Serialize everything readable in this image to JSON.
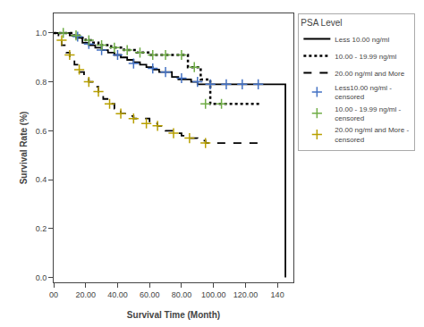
{
  "chart_data": {
    "type": "line",
    "title": "PSA Level",
    "xlabel": "Survival Time (Month)",
    "ylabel": "Survival Rate (%)",
    "xlim": [
      0,
      150
    ],
    "ylim": [
      -0.02,
      1.08
    ],
    "xticks": [
      {
        "value": 0,
        "label": "00"
      },
      {
        "value": 20,
        "label": "20.00"
      },
      {
        "value": 40,
        "label": "40.00"
      },
      {
        "value": 60,
        "label": "60.00"
      },
      {
        "value": 80,
        "label": "80.00"
      },
      {
        "value": 100,
        "label": "100.00"
      },
      {
        "value": 120,
        "label": "120.00"
      },
      140
    ],
    "yticks": [
      {
        "value": 0.0,
        "label": "0.0"
      },
      0.2,
      0.4,
      0.6,
      0.8,
      {
        "value": 1.0,
        "label": "1.0"
      }
    ],
    "grid": false,
    "legend": "right",
    "series": [
      {
        "name": "Less 10.00 ng/ml",
        "type": "line",
        "color": "#000000",
        "line_style": "solid",
        "x": [
          0,
          6,
          10,
          14,
          18,
          22,
          26,
          30,
          34,
          38,
          42,
          46,
          50,
          54,
          58,
          62,
          66,
          70,
          74,
          78,
          82,
          86,
          90,
          94,
          98,
          145
        ],
        "values": [
          1.0,
          1.0,
          0.99,
          0.98,
          0.96,
          0.95,
          0.94,
          0.93,
          0.92,
          0.91,
          0.9,
          0.89,
          0.88,
          0.87,
          0.86,
          0.85,
          0.84,
          0.84,
          0.82,
          0.81,
          0.81,
          0.8,
          0.79,
          0.79,
          0.79,
          0.0
        ]
      },
      {
        "name": "10.00 - 19.99 ng/ml",
        "type": "line",
        "color": "#000000",
        "line_style": "dotted",
        "x": [
          0,
          4,
          8,
          12,
          16,
          20,
          24,
          28,
          32,
          36,
          40,
          44,
          48,
          52,
          56,
          60,
          64,
          68,
          72,
          76,
          80,
          84,
          88,
          92,
          98,
          100,
          130
        ],
        "values": [
          1.0,
          1.0,
          1.0,
          0.99,
          0.98,
          0.97,
          0.96,
          0.95,
          0.95,
          0.94,
          0.94,
          0.93,
          0.93,
          0.92,
          0.92,
          0.91,
          0.91,
          0.91,
          0.91,
          0.91,
          0.91,
          0.86,
          0.86,
          0.81,
          0.71,
          0.71,
          0.71
        ]
      },
      {
        "name": "20.00 ng/ml and More",
        "type": "line",
        "color": "#000000",
        "line_style": "dashed",
        "x": [
          0,
          3,
          5,
          8,
          10,
          13,
          16,
          19,
          22,
          25,
          28,
          31,
          35,
          38,
          42,
          46,
          50,
          55,
          60,
          65,
          70,
          75,
          80,
          85,
          90,
          95,
          130
        ],
        "values": [
          1.0,
          0.97,
          0.95,
          0.92,
          0.9,
          0.87,
          0.84,
          0.82,
          0.8,
          0.78,
          0.75,
          0.73,
          0.71,
          0.69,
          0.67,
          0.66,
          0.65,
          0.65,
          0.63,
          0.62,
          0.6,
          0.59,
          0.58,
          0.57,
          0.56,
          0.55,
          0.55
        ]
      },
      {
        "name": "Less10.00 ng/ml -\ncensored",
        "type": "scatter",
        "color": "#4472c4",
        "marker": "plus",
        "x": [
          15,
          22,
          30,
          40,
          50,
          62,
          70,
          80,
          90,
          98,
          108,
          118,
          128
        ],
        "values": [
          0.985,
          0.955,
          0.93,
          0.91,
          0.875,
          0.855,
          0.84,
          0.815,
          0.8,
          0.79,
          0.79,
          0.79,
          0.79
        ]
      },
      {
        "name": "10.00 - 19.99 ng/ml -\ncensored",
        "type": "scatter",
        "color": "#70ad47",
        "marker": "plus",
        "x": [
          6,
          14,
          22,
          30,
          38,
          46,
          54,
          62,
          70,
          80,
          88,
          95,
          105
        ],
        "values": [
          1.0,
          0.99,
          0.97,
          0.95,
          0.94,
          0.93,
          0.92,
          0.91,
          0.91,
          0.91,
          0.86,
          0.71,
          0.71
        ]
      },
      {
        "name": "20.00 ng/ml and More -\ncensored",
        "type": "scatter",
        "color": "#b8a000",
        "marker": "plus",
        "x": [
          5,
          10,
          16,
          22,
          28,
          35,
          42,
          50,
          58,
          65,
          75,
          85,
          95
        ],
        "values": [
          0.97,
          0.91,
          0.85,
          0.8,
          0.76,
          0.71,
          0.67,
          0.65,
          0.63,
          0.62,
          0.59,
          0.57,
          0.55
        ]
      }
    ]
  }
}
